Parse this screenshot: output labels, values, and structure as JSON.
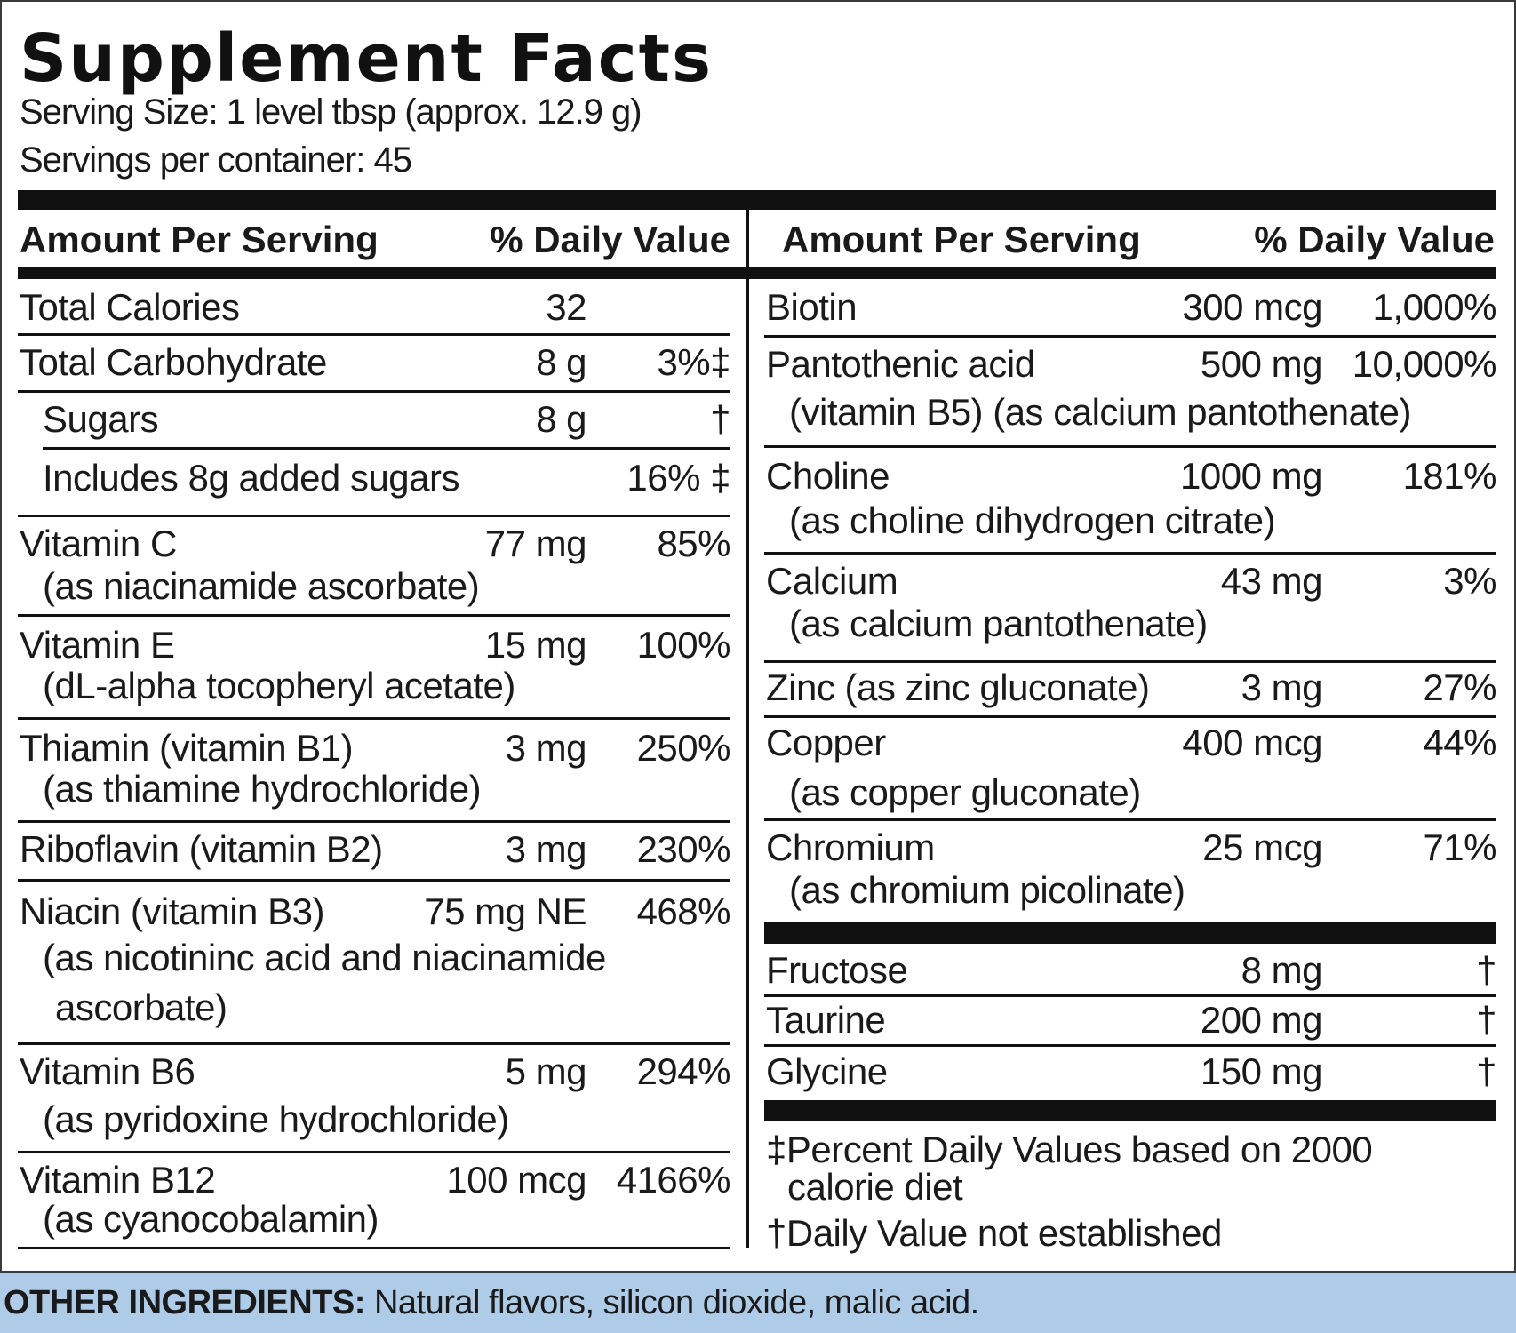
{
  "title": "Supplement Facts",
  "serving_size": "Serving Size: 1 level tbsp (approx. 12.9 g)",
  "servings_per_container": "Servings per container: 45",
  "header": {
    "amount_per_serving": "Amount Per Serving",
    "daily_value": "% Daily Value"
  },
  "left": [
    {
      "name": "Total Calories",
      "amount": "32",
      "dv": ""
    },
    {
      "name": "Total Carbohydrate",
      "amount": "8 g",
      "dv": "3%‡"
    },
    {
      "name": "Sugars",
      "amount": "8 g",
      "dv": "†"
    },
    {
      "name": "Includes 8g added sugars",
      "amount": "",
      "dv": "16% ‡"
    },
    {
      "name": "Vitamin C",
      "amount": "77 mg",
      "dv": "85%",
      "sub": "(as niacinamide ascorbate)"
    },
    {
      "name": "Vitamin E",
      "amount": "15 mg",
      "dv": "100%",
      "sub": "(dL-alpha tocopheryl acetate)"
    },
    {
      "name": "Thiamin (vitamin B1)",
      "amount": "3 mg",
      "dv": "250%",
      "sub": "(as thiamine hydrochloride)"
    },
    {
      "name": "Riboflavin (vitamin B2)",
      "amount": "3 mg",
      "dv": "230%"
    },
    {
      "name": "Niacin (vitamin B3)",
      "amount": "75 mg NE",
      "dv": "468%",
      "sub": "(as nicotininc acid and niacinamide",
      "sub2": "ascorbate)"
    },
    {
      "name": "Vitamin B6",
      "amount": "5 mg",
      "dv": "294%",
      "sub": "(as pyridoxine hydrochloride)"
    },
    {
      "name": "Vitamin B12",
      "amount": "100 mcg",
      "dv": "4166%",
      "sub": "(as cyanocobalamin)"
    }
  ],
  "right": [
    {
      "name": "Biotin",
      "amount": "300 mcg",
      "dv": "1,000%"
    },
    {
      "name": "Pantothenic acid",
      "amount": "500 mg",
      "dv": "10,000%",
      "sub": "(vitamin B5) (as calcium pantothenate)"
    },
    {
      "name": "Choline",
      "amount": "1000 mg",
      "dv": "181%",
      "sub": "(as choline dihydrogen citrate)"
    },
    {
      "name": "Calcium",
      "amount": "43 mg",
      "dv": "3%",
      "sub": "(as calcium pantothenate)"
    },
    {
      "name": "Zinc (as zinc gluconate)",
      "amount": "3 mg",
      "dv": "27%"
    },
    {
      "name": "Copper",
      "amount": "400 mcg",
      "dv": "44%",
      "sub": "(as copper gluconate)"
    },
    {
      "name": "Chromium",
      "amount": "25 mcg",
      "dv": "71%",
      "sub": "(as chromium picolinate)"
    }
  ],
  "right_other": [
    {
      "name": "Fructose",
      "amount": "8 mg",
      "dv": "†"
    },
    {
      "name": "Taurine",
      "amount": "200 mg",
      "dv": "†"
    },
    {
      "name": "Glycine",
      "amount": "150 mg",
      "dv": "†"
    }
  ],
  "footnotes": {
    "dv_basis_1": "‡Percent Daily Values based on 2000",
    "dv_basis_2": "calorie diet",
    "not_established": "†Daily Value not established"
  },
  "other_ingredients": {
    "label": "OTHER INGREDIENTS:",
    "text": " Natural flavors, silicon dioxide, malic acid."
  }
}
